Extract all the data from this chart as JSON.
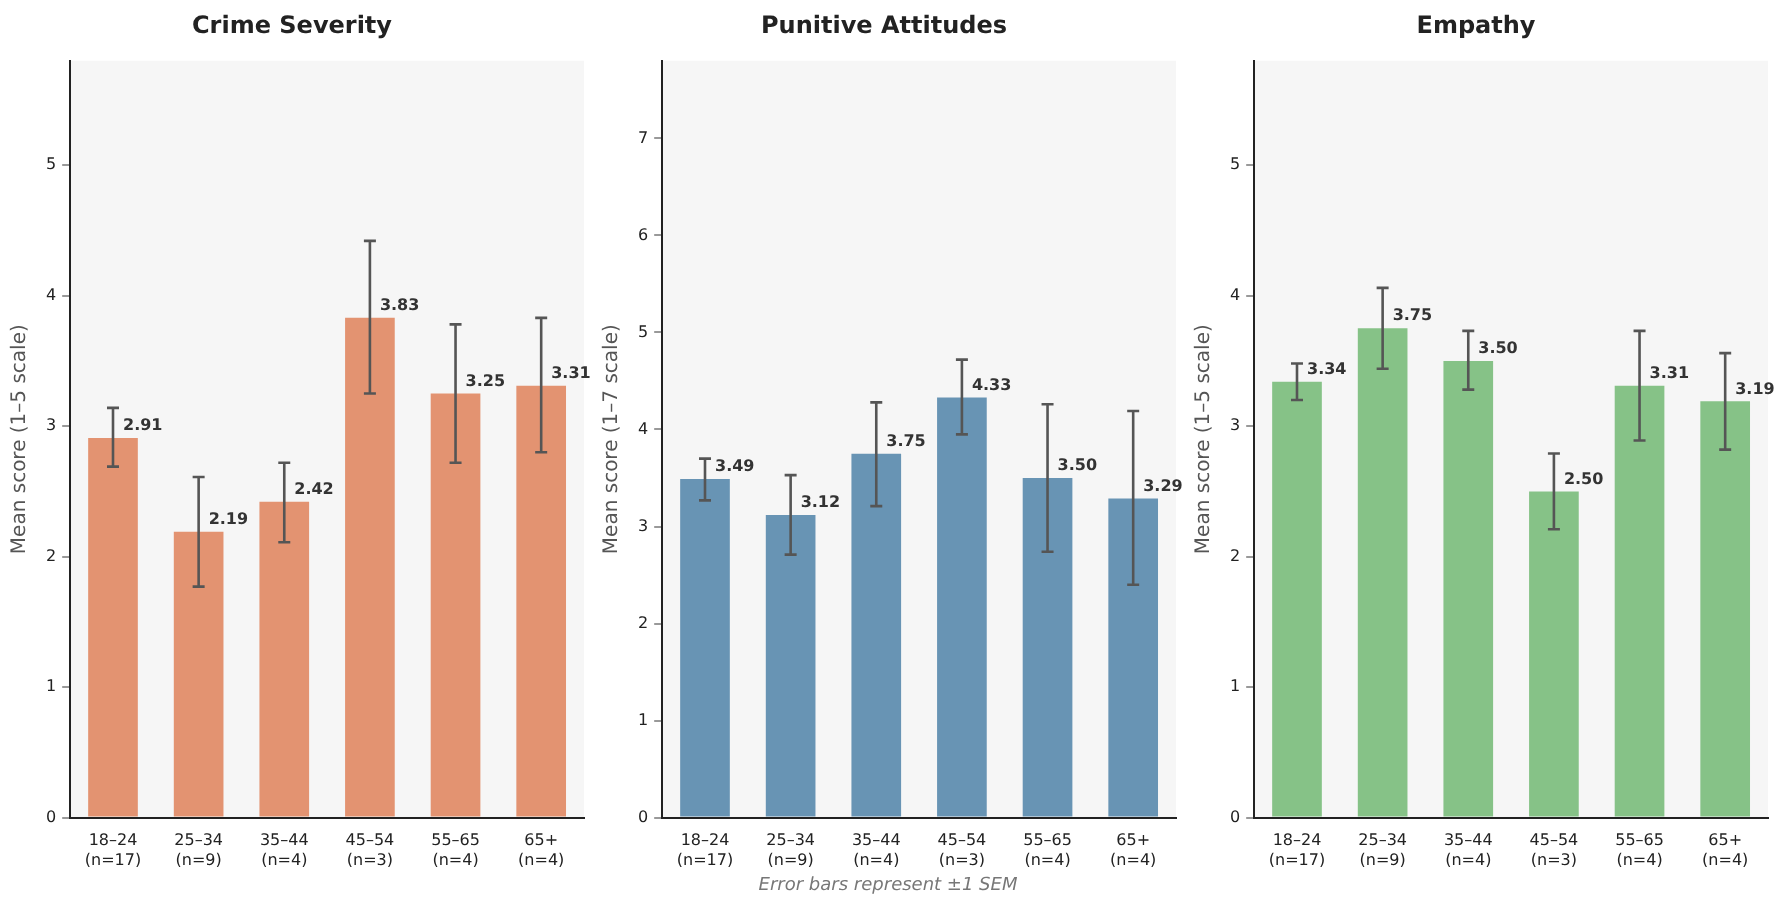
{
  "chart_data": [
    {
      "type": "bar",
      "title": "Crime Severity",
      "ylabel": "Mean score (1–5 scale)",
      "categories": [
        "18–24\n(n=17)",
        "25–34\n(n=9)",
        "35–44\n(n=4)",
        "45–54\n(n=3)",
        "55–65\n(n=4)",
        "65+\n(n=4)"
      ],
      "values": [
        2.91,
        2.19,
        2.42,
        3.83,
        3.25,
        3.31
      ],
      "value_labels": [
        "2.91",
        "2.19",
        "2.42",
        "3.83",
        "3.25",
        "3.31"
      ],
      "errors": [
        [
          2.69,
          3.14
        ],
        [
          1.77,
          2.61
        ],
        [
          2.11,
          2.72
        ],
        [
          3.25,
          4.42
        ],
        [
          2.72,
          3.78
        ],
        [
          2.8,
          3.83
        ]
      ],
      "color": "#e39371",
      "ylim": [
        0,
        5.8
      ],
      "yticks": [
        0,
        1,
        2,
        3,
        4,
        5
      ],
      "grid": false,
      "legend": false
    },
    {
      "type": "bar",
      "title": "Punitive Attitudes",
      "ylabel": "Mean score (1–7 scale)",
      "categories": [
        "18–24\n(n=17)",
        "25–34\n(n=9)",
        "35–44\n(n=4)",
        "45–54\n(n=3)",
        "55–65\n(n=4)",
        "65+\n(n=4)"
      ],
      "values": [
        3.49,
        3.12,
        3.75,
        4.33,
        3.5,
        3.29
      ],
      "value_labels": [
        "3.49",
        "3.12",
        "3.75",
        "4.33",
        "3.50",
        "3.29"
      ],
      "errors": [
        [
          3.27,
          3.7
        ],
        [
          2.71,
          3.53
        ],
        [
          3.21,
          4.28
        ],
        [
          3.95,
          4.72
        ],
        [
          2.74,
          4.26
        ],
        [
          2.4,
          4.19
        ]
      ],
      "color": "#6894b4",
      "ylim": [
        0,
        7.8
      ],
      "yticks": [
        0,
        1,
        2,
        3,
        4,
        5,
        6,
        7
      ],
      "grid": false,
      "legend": false,
      "annotations": [
        "Error bars represent ±1 SEM"
      ]
    },
    {
      "type": "bar",
      "title": "Empathy",
      "ylabel": "Mean score (1–5 scale)",
      "categories": [
        "18–24\n(n=17)",
        "25–34\n(n=9)",
        "35–44\n(n=4)",
        "45–54\n(n=3)",
        "55–65\n(n=4)",
        "65+\n(n=4)"
      ],
      "values": [
        3.34,
        3.75,
        3.5,
        2.5,
        3.31,
        3.19
      ],
      "value_labels": [
        "3.34",
        "3.75",
        "3.50",
        "2.50",
        "3.31",
        "3.19"
      ],
      "errors": [
        [
          3.2,
          3.48
        ],
        [
          3.44,
          4.06
        ],
        [
          3.28,
          3.73
        ],
        [
          2.21,
          2.79
        ],
        [
          2.89,
          3.73
        ],
        [
          2.82,
          3.56
        ]
      ],
      "color": "#86c287",
      "ylim": [
        0,
        5.8
      ],
      "yticks": [
        0,
        1,
        2,
        3,
        4,
        5
      ],
      "grid": false,
      "legend": false
    }
  ]
}
